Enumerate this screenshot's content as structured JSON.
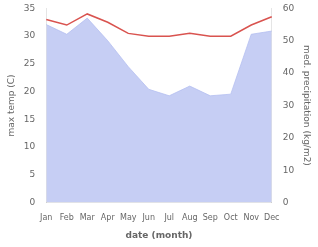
{
  "chart_data": {
    "type": "line",
    "xlabel": "date (month)",
    "ylabel": "max temp (C)",
    "y2label": "med. precipitation (kg/m2)",
    "categories": [
      "Jan",
      "Feb",
      "Mar",
      "Apr",
      "May",
      "Jun",
      "Jul",
      "Aug",
      "Sep",
      "Oct",
      "Nov",
      "Dec"
    ],
    "series": [
      {
        "type": "area",
        "axis": "y2",
        "color": "#b3bef0",
        "values": [
          55.0,
          52.0,
          57.0,
          50.0,
          42.0,
          35.0,
          33.0,
          36.0,
          33.0,
          33.5,
          52.0,
          53.0
        ]
      },
      {
        "type": "line",
        "color": "#d9534f",
        "values": [
          33.0,
          32.0,
          34.0,
          32.5,
          30.5,
          30.0,
          30.0,
          30.5,
          30.0,
          30.0,
          32.0,
          33.5
        ]
      }
    ],
    "ylim": [
      0,
      35
    ],
    "yticks": [
      0,
      5,
      10,
      15,
      20,
      25,
      30,
      35
    ],
    "y2lim": [
      0,
      60
    ],
    "y2ticks": [
      0,
      10,
      20,
      30,
      40,
      50,
      60
    ],
    "grid": false
  }
}
